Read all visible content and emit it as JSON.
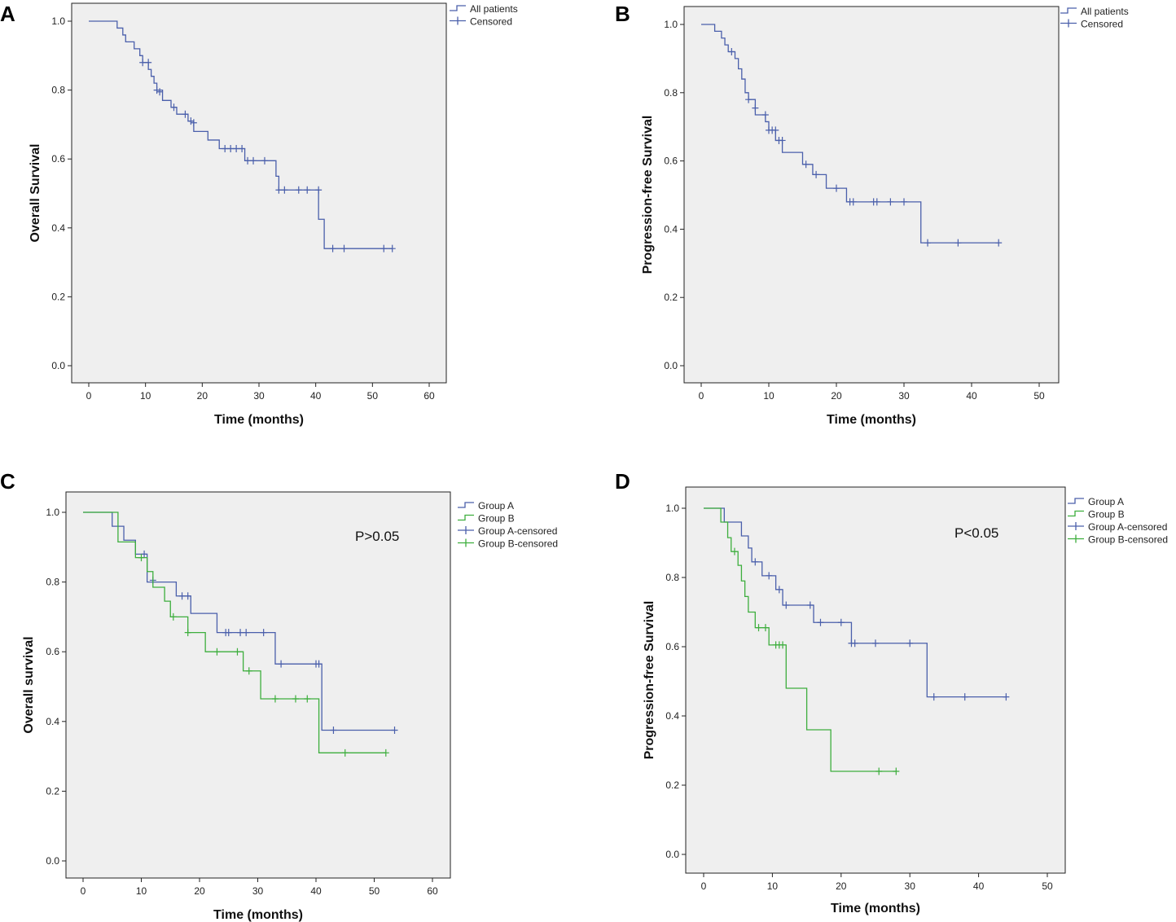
{
  "chart_data": [
    {
      "panel": "A",
      "type": "line",
      "subtype": "kaplan-meier",
      "xlabel": "Time (months)",
      "ylabel": "Overall Survival",
      "xlim": [
        0,
        60
      ],
      "ylim": [
        0,
        1.0
      ],
      "xticks": [
        "0",
        "10",
        "20",
        "30",
        "40",
        "50",
        "60"
      ],
      "yticks": [
        "0.0",
        "0.2",
        "0.4",
        "0.6",
        "0.8",
        "1.0"
      ],
      "legend_position": "top-right-outside",
      "legend": [
        {
          "label": "All patients",
          "kind": "line",
          "color": "#4a5fab"
        },
        {
          "label": "Censored",
          "kind": "censor",
          "color": "#4a5fab"
        }
      ],
      "series": [
        {
          "name": "All patients",
          "color": "#4a5fab",
          "steps": [
            [
              0,
              1.0
            ],
            [
              5,
              0.98
            ],
            [
              6,
              0.96
            ],
            [
              6.5,
              0.94
            ],
            [
              8,
              0.92
            ],
            [
              9,
              0.9
            ],
            [
              9.5,
              0.88
            ],
            [
              10.5,
              0.86
            ],
            [
              11,
              0.84
            ],
            [
              11.5,
              0.82
            ],
            [
              12,
              0.8
            ],
            [
              13,
              0.77
            ],
            [
              14.5,
              0.75
            ],
            [
              15.5,
              0.73
            ],
            [
              17.5,
              0.71
            ],
            [
              18.5,
              0.68
            ],
            [
              21,
              0.655
            ],
            [
              23,
              0.63
            ],
            [
              27.5,
              0.595
            ],
            [
              33,
              0.55
            ],
            [
              33.5,
              0.51
            ],
            [
              40.5,
              0.425
            ],
            [
              41.5,
              0.34
            ]
          ],
          "end_x": 53.5,
          "censored": [
            [
              9.5,
              0.88
            ],
            [
              10.5,
              0.88
            ],
            [
              12,
              0.8
            ],
            [
              12.5,
              0.795
            ],
            [
              15,
              0.75
            ],
            [
              17,
              0.73
            ],
            [
              18,
              0.71
            ],
            [
              18.5,
              0.705
            ],
            [
              24,
              0.63
            ],
            [
              25,
              0.63
            ],
            [
              26,
              0.63
            ],
            [
              27,
              0.63
            ],
            [
              28,
              0.595
            ],
            [
              29,
              0.595
            ],
            [
              31,
              0.595
            ],
            [
              33.5,
              0.51
            ],
            [
              34.5,
              0.51
            ],
            [
              37,
              0.51
            ],
            [
              38.5,
              0.51
            ],
            [
              40.5,
              0.51
            ],
            [
              43,
              0.34
            ],
            [
              45,
              0.34
            ],
            [
              52,
              0.34
            ],
            [
              53.5,
              0.34
            ]
          ]
        }
      ]
    },
    {
      "panel": "B",
      "type": "line",
      "subtype": "kaplan-meier",
      "xlabel": "Time (months)",
      "ylabel": "Progression-free Survival",
      "xlim": [
        0,
        50
      ],
      "ylim": [
        0,
        1.0
      ],
      "xticks": [
        "0",
        "10",
        "20",
        "30",
        "40",
        "50"
      ],
      "yticks": [
        "0.0",
        "0.2",
        "0.4",
        "0.6",
        "0.8",
        "1.0"
      ],
      "legend_position": "top-right-outside",
      "legend": [
        {
          "label": "All patients",
          "kind": "line",
          "color": "#4a5fab"
        },
        {
          "label": "Censored",
          "kind": "censor",
          "color": "#4a5fab"
        }
      ],
      "series": [
        {
          "name": "All patients",
          "color": "#4a5fab",
          "steps": [
            [
              0,
              1.0
            ],
            [
              2,
              0.98
            ],
            [
              3,
              0.96
            ],
            [
              3.5,
              0.94
            ],
            [
              4,
              0.92
            ],
            [
              5,
              0.9
            ],
            [
              5.5,
              0.87
            ],
            [
              6,
              0.84
            ],
            [
              6.5,
              0.8
            ],
            [
              7,
              0.78
            ],
            [
              8,
              0.735
            ],
            [
              9.5,
              0.715
            ],
            [
              10,
              0.69
            ],
            [
              11,
              0.66
            ],
            [
              12,
              0.625
            ],
            [
              15,
              0.59
            ],
            [
              16.5,
              0.56
            ],
            [
              18.5,
              0.52
            ],
            [
              21.5,
              0.48
            ],
            [
              32.5,
              0.36
            ]
          ],
          "end_x": 44,
          "censored": [
            [
              4.5,
              0.92
            ],
            [
              7,
              0.78
            ],
            [
              8,
              0.755
            ],
            [
              9.5,
              0.735
            ],
            [
              10,
              0.69
            ],
            [
              10.5,
              0.69
            ],
            [
              11,
              0.69
            ],
            [
              11.5,
              0.66
            ],
            [
              12,
              0.66
            ],
            [
              15.5,
              0.59
            ],
            [
              17,
              0.56
            ],
            [
              20,
              0.52
            ],
            [
              22,
              0.48
            ],
            [
              22.5,
              0.48
            ],
            [
              25.5,
              0.48
            ],
            [
              26,
              0.48
            ],
            [
              28,
              0.48
            ],
            [
              30,
              0.48
            ],
            [
              33.5,
              0.36
            ],
            [
              38,
              0.36
            ],
            [
              44,
              0.36
            ]
          ]
        }
      ]
    },
    {
      "panel": "C",
      "type": "line",
      "subtype": "kaplan-meier",
      "xlabel": "Time (months)",
      "ylabel": "Overall survival",
      "xlim": [
        0,
        60
      ],
      "ylim": [
        0,
        1.0
      ],
      "xticks": [
        "0",
        "10",
        "20",
        "30",
        "40",
        "50",
        "60"
      ],
      "yticks": [
        "0.0",
        "0.2",
        "0.4",
        "0.6",
        "0.8",
        "1.0"
      ],
      "annotation": "P>0.05",
      "legend_position": "top-right-outside",
      "legend": [
        {
          "label": "Group A",
          "kind": "line",
          "color": "#4a5fab"
        },
        {
          "label": "Group B",
          "kind": "line",
          "color": "#3dae3d"
        },
        {
          "label": "Group A-censored",
          "kind": "censor",
          "color": "#4a5fab"
        },
        {
          "label": "Group B-censored",
          "kind": "censor",
          "color": "#3dae3d"
        }
      ],
      "series": [
        {
          "name": "Group A",
          "color": "#4a5fab",
          "steps": [
            [
              0,
              1.0
            ],
            [
              5,
              0.96
            ],
            [
              7,
              0.92
            ],
            [
              9,
              0.88
            ],
            [
              11,
              0.8
            ],
            [
              16,
              0.76
            ],
            [
              18.5,
              0.71
            ],
            [
              23,
              0.655
            ],
            [
              33,
              0.565
            ],
            [
              41,
              0.375
            ]
          ],
          "end_x": 53.5,
          "censored": [
            [
              10.5,
              0.88
            ],
            [
              12,
              0.805
            ],
            [
              17,
              0.76
            ],
            [
              18,
              0.76
            ],
            [
              24.5,
              0.655
            ],
            [
              25,
              0.655
            ],
            [
              27,
              0.655
            ],
            [
              28,
              0.655
            ],
            [
              31,
              0.655
            ],
            [
              34,
              0.565
            ],
            [
              40,
              0.565
            ],
            [
              40.5,
              0.565
            ],
            [
              43,
              0.375
            ],
            [
              53.5,
              0.375
            ]
          ]
        },
        {
          "name": "Group B",
          "color": "#3dae3d",
          "steps": [
            [
              0,
              1.0
            ],
            [
              6,
              0.915
            ],
            [
              9,
              0.87
            ],
            [
              11,
              0.83
            ],
            [
              12,
              0.785
            ],
            [
              14,
              0.745
            ],
            [
              15,
              0.7
            ],
            [
              18,
              0.655
            ],
            [
              21,
              0.6
            ],
            [
              27.5,
              0.545
            ],
            [
              30.5,
              0.465
            ],
            [
              40.5,
              0.31
            ]
          ],
          "end_x": 52,
          "censored": [
            [
              10,
              0.87
            ],
            [
              15.5,
              0.7
            ],
            [
              18,
              0.655
            ],
            [
              23,
              0.6
            ],
            [
              26.5,
              0.6
            ],
            [
              28.5,
              0.545
            ],
            [
              33,
              0.465
            ],
            [
              36.5,
              0.465
            ],
            [
              38.5,
              0.465
            ],
            [
              45,
              0.31
            ],
            [
              52,
              0.31
            ]
          ]
        }
      ]
    },
    {
      "panel": "D",
      "type": "line",
      "subtype": "kaplan-meier",
      "xlabel": "Time (months)",
      "ylabel": "Progression-free Survival",
      "xlim": [
        0,
        50
      ],
      "ylim": [
        0,
        1.0
      ],
      "xticks": [
        "0",
        "10",
        "20",
        "30",
        "40",
        "50"
      ],
      "yticks": [
        "0.0",
        "0.2",
        "0.4",
        "0.6",
        "0.8",
        "1.0"
      ],
      "annotation": "P<0.05",
      "legend_position": "top-right-outside",
      "legend": [
        {
          "label": "Group A",
          "kind": "line",
          "color": "#4a5fab"
        },
        {
          "label": "Group B",
          "kind": "line",
          "color": "#3dae3d"
        },
        {
          "label": "Group A-censored",
          "kind": "censor",
          "color": "#4a5fab"
        },
        {
          "label": "Group B-censored",
          "kind": "censor",
          "color": "#3dae3d"
        }
      ],
      "series": [
        {
          "name": "Group A",
          "color": "#4a5fab",
          "steps": [
            [
              0,
              1.0
            ],
            [
              3,
              0.96
            ],
            [
              5.5,
              0.92
            ],
            [
              6.5,
              0.885
            ],
            [
              7,
              0.845
            ],
            [
              8.5,
              0.805
            ],
            [
              10.5,
              0.765
            ],
            [
              11.5,
              0.72
            ],
            [
              16,
              0.67
            ],
            [
              21.5,
              0.61
            ],
            [
              32.5,
              0.455
            ]
          ],
          "end_x": 44,
          "censored": [
            [
              7.5,
              0.845
            ],
            [
              9.5,
              0.805
            ],
            [
              11,
              0.765
            ],
            [
              12,
              0.72
            ],
            [
              15.5,
              0.72
            ],
            [
              17,
              0.67
            ],
            [
              20,
              0.67
            ],
            [
              21.5,
              0.61
            ],
            [
              22,
              0.61
            ],
            [
              25,
              0.61
            ],
            [
              30,
              0.61
            ],
            [
              33.5,
              0.455
            ],
            [
              38,
              0.455
            ],
            [
              44,
              0.455
            ]
          ]
        },
        {
          "name": "Group B",
          "color": "#3dae3d",
          "steps": [
            [
              0,
              1.0
            ],
            [
              2.5,
              0.96
            ],
            [
              3.5,
              0.915
            ],
            [
              4,
              0.875
            ],
            [
              5,
              0.835
            ],
            [
              5.5,
              0.79
            ],
            [
              6,
              0.745
            ],
            [
              6.5,
              0.7
            ],
            [
              7.5,
              0.655
            ],
            [
              9.5,
              0.605
            ],
            [
              12,
              0.48
            ],
            [
              15,
              0.36
            ],
            [
              18.5,
              0.24
            ]
          ],
          "end_x": 28,
          "censored": [
            [
              4.5,
              0.875
            ],
            [
              8,
              0.655
            ],
            [
              9,
              0.655
            ],
            [
              10.5,
              0.605
            ],
            [
              11,
              0.605
            ],
            [
              11.5,
              0.605
            ],
            [
              25.5,
              0.24
            ],
            [
              28,
              0.24
            ]
          ]
        }
      ]
    }
  ]
}
